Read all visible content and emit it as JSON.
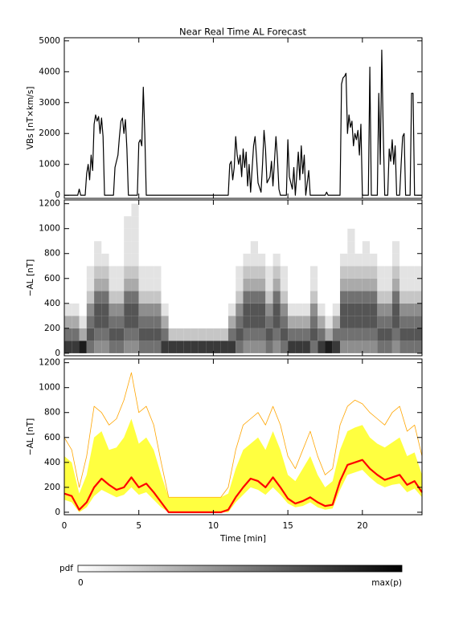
{
  "chart_data": [
    {
      "type": "line",
      "title": "Near Real Time AL Forecast",
      "ylabel": "VBs [nT×km/s]",
      "xlim": [
        0,
        24
      ],
      "xticks": [
        0,
        5,
        10,
        15,
        20
      ],
      "ylim": [
        -100,
        5100
      ],
      "yticks": [
        0,
        1000,
        2000,
        3000,
        4000,
        5000
      ],
      "color": "#000000",
      "x": [
        0,
        0.9,
        1.0,
        1.1,
        1.4,
        1.5,
        1.6,
        1.7,
        1.8,
        1.9,
        2.0,
        2.1,
        2.2,
        2.3,
        2.4,
        2.5,
        2.6,
        2.7,
        3.3,
        3.4,
        3.6,
        3.7,
        3.8,
        3.9,
        4.0,
        4.1,
        4.2,
        4.3,
        4.9,
        5.0,
        5.1,
        5.2,
        5.3,
        5.4,
        5.5,
        11.0,
        11.1,
        11.2,
        11.3,
        11.4,
        11.5,
        11.6,
        11.7,
        11.8,
        11.9,
        12.0,
        12.1,
        12.2,
        12.3,
        12.4,
        12.5,
        12.7,
        12.8,
        12.9,
        13.0,
        13.2,
        13.3,
        13.4,
        13.5,
        13.6,
        13.8,
        13.9,
        14.0,
        14.2,
        14.3,
        14.4,
        14.5,
        14.9,
        15.0,
        15.1,
        15.3,
        15.4,
        15.5,
        15.7,
        15.8,
        15.9,
        16.0,
        16.1,
        16.2,
        16.4,
        16.5,
        17.5,
        17.6,
        17.7,
        18.5,
        18.6,
        18.7,
        18.8,
        18.9,
        19.0,
        19.1,
        19.2,
        19.3,
        19.4,
        19.5,
        19.6,
        19.7,
        19.8,
        19.9,
        20.0,
        20.4,
        20.5,
        20.6,
        21.0,
        21.1,
        21.2,
        21.3,
        21.4,
        21.5,
        21.7,
        21.8,
        21.9,
        22.0,
        22.1,
        22.2,
        22.3,
        22.5,
        22.6,
        22.7,
        22.8,
        22.9,
        23.2,
        23.3,
        23.4,
        23.5,
        24
      ],
      "values": [
        0,
        0,
        200,
        0,
        0,
        700,
        1000,
        500,
        1300,
        800,
        2300,
        2600,
        2400,
        2550,
        2000,
        2500,
        1900,
        0,
        0,
        900,
        1300,
        1900,
        2400,
        2500,
        2000,
        2450,
        1500,
        0,
        0,
        1700,
        1800,
        1600,
        3500,
        2000,
        0,
        0,
        1000,
        1100,
        500,
        900,
        1900,
        1300,
        1000,
        1300,
        600,
        1500,
        900,
        1400,
        300,
        1000,
        100,
        1600,
        1900,
        1200,
        400,
        100,
        1000,
        2100,
        1500,
        400,
        600,
        1100,
        300,
        1900,
        1200,
        200,
        0,
        0,
        1800,
        600,
        200,
        900,
        0,
        1400,
        500,
        1600,
        700,
        1300,
        0,
        800,
        0,
        0,
        100,
        0,
        0,
        3600,
        3800,
        3850,
        3950,
        2000,
        2600,
        2200,
        2400,
        1600,
        2000,
        1800,
        2100,
        1300,
        2300,
        0,
        0,
        4150,
        0,
        0,
        3300,
        1000,
        4700,
        2000,
        0,
        0,
        1500,
        1100,
        1800,
        1000,
        1600,
        0,
        0,
        1000,
        1900,
        2000,
        0,
        0,
        3300,
        3300,
        0,
        0
      ]
    },
    {
      "type": "heatmap",
      "ylabel": "−AL [nT]",
      "xlim": [
        0,
        24
      ],
      "xticks": [
        0,
        5,
        10,
        15,
        20
      ],
      "ylim": [
        -20,
        1230
      ],
      "yticks": [
        0,
        200,
        400,
        600,
        800,
        1000,
        1200
      ],
      "xbins": [
        0,
        0.5,
        1,
        1.5,
        2,
        2.5,
        3,
        3.5,
        4,
        4.5,
        5,
        5.5,
        6,
        6.5,
        7,
        7.5,
        8,
        8.5,
        9,
        9.5,
        10,
        10.5,
        11,
        11.5,
        12,
        12.5,
        13,
        13.5,
        14,
        14.5,
        15,
        15.5,
        16,
        16.5,
        17,
        17.5,
        18,
        18.5,
        19,
        19.5,
        20,
        20.5,
        21,
        21.5,
        22,
        22.5,
        23,
        23.5,
        24
      ],
      "ybins": [
        0,
        100,
        200,
        300,
        400,
        500,
        600,
        700,
        800,
        900,
        1000,
        1100,
        1200
      ],
      "zlim": [
        0,
        9
      ],
      "colorbar": {
        "label": "pdf",
        "ticks": [
          0,
          {
            "value": 9,
            "label": "max(p)"
          }
        ]
      },
      "z": [
        [
          7,
          7,
          8,
          5,
          4,
          4,
          5,
          5,
          4,
          4,
          5,
          5,
          5,
          7,
          7,
          7,
          7,
          7,
          7,
          7,
          7,
          7,
          7,
          5,
          4,
          4,
          4,
          5,
          4,
          5,
          7,
          7,
          7,
          5,
          7,
          8,
          7,
          4,
          4,
          4,
          4,
          4,
          5,
          5,
          4,
          5,
          5,
          5
        ],
        [
          5,
          5,
          3,
          6,
          5,
          5,
          6,
          6,
          5,
          5,
          6,
          6,
          6,
          5,
          2,
          2,
          2,
          2,
          2,
          2,
          2,
          2,
          5,
          6,
          5,
          5,
          5,
          6,
          5,
          6,
          5,
          5,
          5,
          6,
          5,
          3,
          5,
          5,
          5,
          5,
          5,
          5,
          6,
          6,
          5,
          6,
          6,
          6
        ],
        [
          3,
          3,
          1,
          5,
          6,
          6,
          5,
          5,
          6,
          6,
          5,
          5,
          5,
          3,
          0,
          0,
          0,
          0,
          0,
          0,
          0,
          0,
          3,
          5,
          6,
          6,
          6,
          5,
          6,
          5,
          3,
          3,
          3,
          5,
          3,
          1,
          3,
          6,
          6,
          6,
          6,
          6,
          5,
          5,
          6,
          5,
          5,
          5
        ],
        [
          1,
          1,
          0,
          4,
          6,
          6,
          4,
          4,
          6,
          6,
          4,
          4,
          4,
          1,
          0,
          0,
          0,
          0,
          0,
          0,
          0,
          0,
          1,
          4,
          6,
          6,
          6,
          4,
          6,
          4,
          1,
          1,
          1,
          4,
          1,
          0,
          1,
          6,
          6,
          6,
          6,
          6,
          4,
          4,
          6,
          4,
          4,
          4
        ],
        [
          0,
          0,
          0,
          2,
          5,
          5,
          2,
          2,
          5,
          5,
          2,
          2,
          2,
          0,
          0,
          0,
          0,
          0,
          0,
          0,
          0,
          0,
          0,
          2,
          5,
          5,
          5,
          2,
          5,
          2,
          0,
          0,
          0,
          2,
          0,
          0,
          0,
          5,
          5,
          5,
          5,
          5,
          2,
          2,
          5,
          2,
          2,
          2
        ],
        [
          0,
          0,
          0,
          1,
          3,
          3,
          1,
          1,
          3,
          3,
          1,
          1,
          1,
          0,
          0,
          0,
          0,
          0,
          0,
          0,
          0,
          0,
          0,
          1,
          3,
          3,
          3,
          1,
          3,
          1,
          0,
          0,
          0,
          1,
          0,
          0,
          0,
          3,
          3,
          3,
          3,
          3,
          1,
          1,
          3,
          1,
          1,
          1
        ],
        [
          0,
          0,
          0,
          1,
          2,
          2,
          1,
          1,
          2,
          2,
          1,
          1,
          1,
          0,
          0,
          0,
          0,
          0,
          0,
          0,
          0,
          0,
          0,
          1,
          2,
          2,
          2,
          1,
          2,
          1,
          0,
          0,
          0,
          1,
          0,
          0,
          0,
          2,
          2,
          2,
          2,
          2,
          1,
          1,
          2,
          1,
          1,
          1
        ],
        [
          0,
          0,
          0,
          0,
          1,
          1,
          0,
          0,
          1,
          1,
          0,
          0,
          0,
          0,
          0,
          0,
          0,
          0,
          0,
          0,
          0,
          0,
          0,
          0,
          1,
          1,
          1,
          0,
          1,
          0,
          0,
          0,
          0,
          0,
          0,
          0,
          0,
          1,
          1,
          1,
          1,
          1,
          0,
          0,
          1,
          0,
          0,
          0
        ],
        [
          0,
          0,
          0,
          0,
          1,
          0,
          0,
          0,
          1,
          1,
          0,
          0,
          0,
          0,
          0,
          0,
          0,
          0,
          0,
          0,
          0,
          0,
          0,
          0,
          0,
          1,
          0,
          0,
          0,
          0,
          0,
          0,
          0,
          0,
          0,
          0,
          0,
          0,
          1,
          0,
          1,
          0,
          0,
          0,
          1,
          0,
          0,
          0
        ],
        [
          0,
          0,
          0,
          0,
          0,
          0,
          0,
          0,
          1,
          1,
          0,
          0,
          0,
          0,
          0,
          0,
          0,
          0,
          0,
          0,
          0,
          0,
          0,
          0,
          0,
          0,
          0,
          0,
          0,
          0,
          0,
          0,
          0,
          0,
          0,
          0,
          0,
          0,
          1,
          0,
          0,
          0,
          0,
          0,
          0,
          0,
          0,
          0
        ],
        [
          0,
          0,
          0,
          0,
          0,
          0,
          0,
          0,
          1,
          1,
          0,
          0,
          0,
          0,
          0,
          0,
          0,
          0,
          0,
          0,
          0,
          0,
          0,
          0,
          0,
          0,
          0,
          0,
          0,
          0,
          0,
          0,
          0,
          0,
          0,
          0,
          0,
          0,
          0,
          0,
          0,
          0,
          0,
          0,
          0,
          0,
          0,
          0
        ],
        [
          0,
          0,
          0,
          0,
          0,
          0,
          0,
          0,
          0,
          1,
          0,
          0,
          0,
          0,
          0,
          0,
          0,
          0,
          0,
          0,
          0,
          0,
          0,
          0,
          0,
          0,
          0,
          0,
          0,
          0,
          0,
          0,
          0,
          0,
          0,
          0,
          0,
          0,
          0,
          0,
          0,
          0,
          0,
          0,
          0,
          0,
          0,
          0
        ]
      ]
    },
    {
      "type": "band",
      "ylabel": "−AL [nT]",
      "xlabel": "Time [min]",
      "xlim": [
        0,
        24
      ],
      "xticks": [
        0,
        5,
        10,
        15,
        20
      ],
      "ylim": [
        -20,
        1230
      ],
      "yticks": [
        0,
        200,
        400,
        600,
        800,
        1000,
        1200
      ],
      "x": [
        0,
        0.5,
        1,
        1.5,
        2,
        2.5,
        3,
        3.5,
        4,
        4.5,
        5,
        5.5,
        6,
        6.5,
        7,
        7.5,
        8,
        8.5,
        9,
        9.5,
        10,
        10.5,
        11,
        11.5,
        12,
        12.5,
        13,
        13.5,
        14,
        14.5,
        15,
        15.5,
        16,
        16.5,
        17,
        17.5,
        18,
        18.5,
        19,
        19.5,
        20,
        20.5,
        21,
        21.5,
        22,
        22.5,
        23,
        23.5,
        24
      ],
      "band": {
        "color": "#ffff40",
        "lower": [
          100,
          80,
          0,
          40,
          130,
          180,
          150,
          120,
          140,
          200,
          140,
          160,
          100,
          40,
          0,
          0,
          0,
          0,
          0,
          0,
          0,
          0,
          0,
          80,
          140,
          200,
          180,
          140,
          200,
          140,
          70,
          40,
          50,
          80,
          40,
          20,
          30,
          180,
          300,
          320,
          340,
          280,
          230,
          200,
          220,
          230,
          160,
          190,
          120
        ],
        "upper": [
          450,
          400,
          150,
          300,
          600,
          650,
          500,
          520,
          600,
          750,
          550,
          600,
          500,
          300,
          120,
          120,
          120,
          120,
          120,
          120,
          120,
          120,
          150,
          350,
          500,
          550,
          600,
          500,
          650,
          500,
          300,
          250,
          350,
          450,
          300,
          200,
          250,
          500,
          650,
          680,
          700,
          600,
          550,
          520,
          560,
          600,
          450,
          480,
          300
        ]
      },
      "series": [
        {
          "color": "#ffa500",
          "width": 0.8,
          "values": [
            600,
            500,
            200,
            450,
            850,
            800,
            700,
            750,
            900,
            1120,
            800,
            850,
            700,
            400,
            120,
            120,
            120,
            120,
            120,
            120,
            120,
            120,
            200,
            500,
            700,
            750,
            800,
            700,
            850,
            700,
            450,
            350,
            500,
            650,
            450,
            300,
            350,
            700,
            850,
            900,
            870,
            800,
            750,
            700,
            800,
            850,
            650,
            700,
            450
          ]
        },
        {
          "color": "#ff0000",
          "width": 2.2,
          "values": [
            150,
            130,
            20,
            80,
            200,
            270,
            220,
            180,
            200,
            280,
            200,
            230,
            160,
            80,
            0,
            0,
            0,
            0,
            0,
            0,
            0,
            0,
            20,
            120,
            200,
            270,
            250,
            200,
            280,
            200,
            110,
            70,
            90,
            120,
            80,
            50,
            60,
            250,
            380,
            400,
            420,
            350,
            300,
            260,
            280,
            300,
            220,
            250,
            160
          ]
        }
      ]
    }
  ]
}
